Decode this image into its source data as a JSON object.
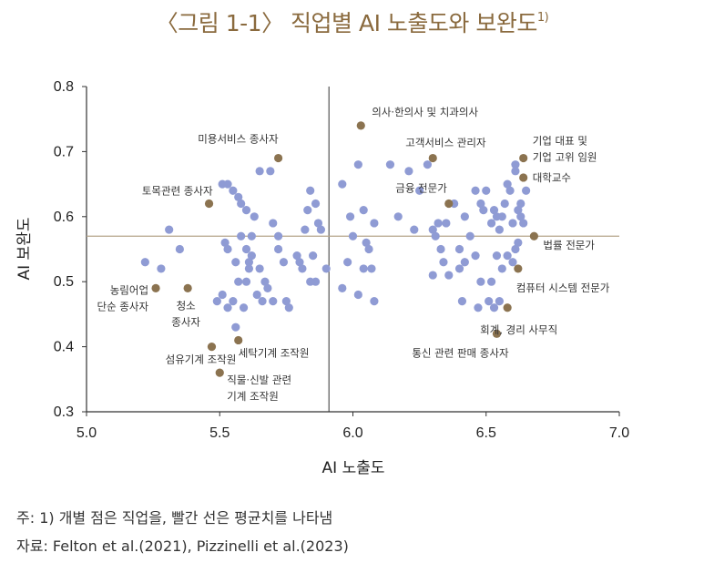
{
  "title": {
    "text": "〈그림 1-1〉 직업별 AI 노출도와 보완도",
    "sup": "1)"
  },
  "footnote": {
    "note": "주: 1) 개별 점은 직업을, 빨간 선은 평균치를 나타냄",
    "source": "자료: Felton et al.(2021), Pizzinelli et al.(2023)"
  },
  "colors": {
    "blue": "#8f9bd4",
    "brown": "#8b7350",
    "axis": "#333333",
    "mean_line": "#b5a58a"
  },
  "chart_data": {
    "type": "scatter",
    "title": "〈그림 1-1〉 직업별 AI 노출도와 보완도",
    "xlabel": "AI 노출도",
    "ylabel": "AI 보완도",
    "xlim": [
      5.0,
      7.0
    ],
    "ylim": [
      0.3,
      0.8
    ],
    "xticks": [
      "5.0",
      "5.5",
      "6.0",
      "6.5",
      "7.0"
    ],
    "yticks": [
      "0.3",
      "0.4",
      "0.5",
      "0.6",
      "0.7",
      "0.8"
    ],
    "mean_x": 5.91,
    "mean_y": 0.57,
    "series": [
      {
        "name": "occupations",
        "color": "#8f9bd4",
        "points": [
          [
            5.22,
            0.53
          ],
          [
            5.28,
            0.52
          ],
          [
            5.31,
            0.58
          ],
          [
            5.35,
            0.55
          ],
          [
            5.51,
            0.65
          ],
          [
            5.53,
            0.65
          ],
          [
            5.52,
            0.56
          ],
          [
            5.53,
            0.55
          ],
          [
            5.55,
            0.64
          ],
          [
            5.57,
            0.63
          ],
          [
            5.58,
            0.62
          ],
          [
            5.6,
            0.61
          ],
          [
            5.56,
            0.53
          ],
          [
            5.58,
            0.57
          ],
          [
            5.6,
            0.55
          ],
          [
            5.61,
            0.52
          ],
          [
            5.62,
            0.54
          ],
          [
            5.63,
            0.6
          ],
          [
            5.65,
            0.52
          ],
          [
            5.65,
            0.67
          ],
          [
            5.67,
            0.5
          ],
          [
            5.68,
            0.49
          ],
          [
            5.69,
            0.67
          ],
          [
            5.7,
            0.59
          ],
          [
            5.72,
            0.55
          ],
          [
            5.74,
            0.53
          ],
          [
            5.75,
            0.47
          ],
          [
            5.76,
            0.46
          ],
          [
            5.7,
            0.47
          ],
          [
            5.72,
            0.57
          ],
          [
            5.66,
            0.47
          ],
          [
            5.64,
            0.48
          ],
          [
            5.6,
            0.5
          ],
          [
            5.57,
            0.5
          ],
          [
            5.55,
            0.47
          ],
          [
            5.53,
            0.46
          ],
          [
            5.51,
            0.48
          ],
          [
            5.49,
            0.47
          ],
          [
            5.56,
            0.43
          ],
          [
            5.59,
            0.46
          ],
          [
            5.61,
            0.53
          ],
          [
            5.62,
            0.57
          ],
          [
            5.8,
            0.53
          ],
          [
            5.82,
            0.58
          ],
          [
            5.83,
            0.61
          ],
          [
            5.84,
            0.64
          ],
          [
            5.86,
            0.62
          ],
          [
            5.87,
            0.59
          ],
          [
            5.88,
            0.58
          ],
          [
            5.85,
            0.54
          ],
          [
            5.9,
            0.52
          ],
          [
            5.86,
            0.5
          ],
          [
            5.81,
            0.52
          ],
          [
            5.79,
            0.54
          ],
          [
            5.84,
            0.5
          ],
          [
            5.96,
            0.65
          ],
          [
            5.99,
            0.6
          ],
          [
            6.0,
            0.57
          ],
          [
            5.98,
            0.53
          ],
          [
            6.02,
            0.68
          ],
          [
            6.04,
            0.61
          ],
          [
            6.05,
            0.56
          ],
          [
            6.06,
            0.55
          ],
          [
            6.07,
            0.52
          ],
          [
            6.08,
            0.59
          ],
          [
            6.02,
            0.48
          ],
          [
            6.04,
            0.52
          ],
          [
            6.08,
            0.47
          ],
          [
            5.96,
            0.49
          ],
          [
            6.14,
            0.68
          ],
          [
            6.17,
            0.6
          ],
          [
            6.21,
            0.67
          ],
          [
            6.23,
            0.58
          ],
          [
            6.25,
            0.64
          ],
          [
            6.28,
            0.68
          ],
          [
            6.3,
            0.58
          ],
          [
            6.31,
            0.57
          ],
          [
            6.32,
            0.59
          ],
          [
            6.33,
            0.55
          ],
          [
            6.35,
            0.59
          ],
          [
            6.34,
            0.53
          ],
          [
            6.38,
            0.62
          ],
          [
            6.4,
            0.55
          ],
          [
            6.4,
            0.52
          ],
          [
            6.42,
            0.6
          ],
          [
            6.44,
            0.57
          ],
          [
            6.46,
            0.54
          ],
          [
            6.46,
            0.64
          ],
          [
            6.48,
            0.62
          ],
          [
            6.49,
            0.61
          ],
          [
            6.5,
            0.64
          ],
          [
            6.52,
            0.59
          ],
          [
            6.53,
            0.61
          ],
          [
            6.54,
            0.6
          ],
          [
            6.55,
            0.58
          ],
          [
            6.56,
            0.6
          ],
          [
            6.57,
            0.62
          ],
          [
            6.58,
            0.65
          ],
          [
            6.59,
            0.64
          ],
          [
            6.6,
            0.59
          ],
          [
            6.61,
            0.67
          ],
          [
            6.62,
            0.61
          ],
          [
            6.63,
            0.6
          ],
          [
            6.64,
            0.59
          ],
          [
            6.61,
            0.68
          ],
          [
            6.63,
            0.62
          ],
          [
            6.65,
            0.64
          ],
          [
            6.54,
            0.54
          ],
          [
            6.52,
            0.5
          ],
          [
            6.56,
            0.52
          ],
          [
            6.58,
            0.54
          ],
          [
            6.6,
            0.53
          ],
          [
            6.61,
            0.55
          ],
          [
            6.62,
            0.56
          ],
          [
            6.55,
            0.47
          ],
          [
            6.53,
            0.46
          ],
          [
            6.51,
            0.47
          ],
          [
            6.47,
            0.46
          ],
          [
            6.41,
            0.47
          ],
          [
            6.3,
            0.51
          ],
          [
            6.36,
            0.51
          ],
          [
            6.42,
            0.53
          ],
          [
            6.48,
            0.5
          ]
        ]
      },
      {
        "name": "labeled",
        "color": "#8b7350",
        "points": [
          {
            "x": 6.03,
            "y": 0.74,
            "label": "의사·한의사 및 치과의사"
          },
          {
            "x": 6.3,
            "y": 0.69,
            "label": "고객서비스 관리자"
          },
          {
            "x": 5.72,
            "y": 0.69,
            "label": "미용서비스 종사자"
          },
          {
            "x": 6.64,
            "y": 0.69,
            "label": "기업 대표 및 기업 고위 임원"
          },
          {
            "x": 6.64,
            "y": 0.66,
            "label": "대학교수"
          },
          {
            "x": 6.36,
            "y": 0.62,
            "label": "금융 전문가"
          },
          {
            "x": 5.46,
            "y": 0.62,
            "label": "토목관련 종사자"
          },
          {
            "x": 6.68,
            "y": 0.57,
            "label": "법률 전문가"
          },
          {
            "x": 6.62,
            "y": 0.52,
            "label": "컴퓨터 시스템 전문가"
          },
          {
            "x": 5.26,
            "y": 0.49,
            "label": "농림어업 단순 종사자"
          },
          {
            "x": 5.38,
            "y": 0.49,
            "label": "청소 종사자"
          },
          {
            "x": 6.58,
            "y": 0.46,
            "label": "회계, 경리 사무직"
          },
          {
            "x": 6.54,
            "y": 0.42,
            "label": "통신 관련 판매 종사자"
          },
          {
            "x": 5.47,
            "y": 0.4,
            "label": "섬유기계 조작원"
          },
          {
            "x": 5.57,
            "y": 0.41,
            "label": "세탁기계 조작원"
          },
          {
            "x": 5.5,
            "y": 0.36,
            "label": "직물·신발 관련 기계 조작원"
          }
        ]
      }
    ]
  }
}
